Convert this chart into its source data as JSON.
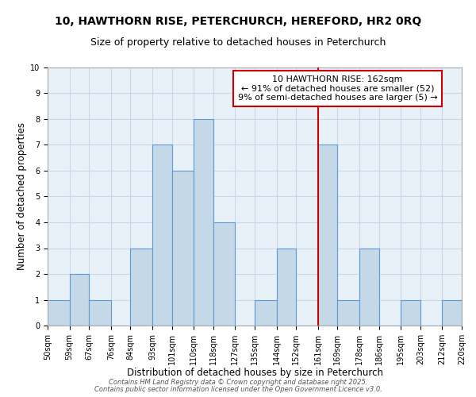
{
  "title": "10, HAWTHORN RISE, PETERCHURCH, HEREFORD, HR2 0RQ",
  "subtitle": "Size of property relative to detached houses in Peterchurch",
  "xlabel": "Distribution of detached houses by size in Peterchurch",
  "ylabel": "Number of detached properties",
  "bin_edges": [
    50,
    59,
    67,
    76,
    84,
    93,
    101,
    110,
    118,
    127,
    135,
    144,
    152,
    161,
    169,
    178,
    186,
    195,
    203,
    212,
    220
  ],
  "bin_labels": [
    "50sqm",
    "59sqm",
    "67sqm",
    "76sqm",
    "84sqm",
    "93sqm",
    "101sqm",
    "110sqm",
    "118sqm",
    "127sqm",
    "135sqm",
    "144sqm",
    "152sqm",
    "161sqm",
    "169sqm",
    "178sqm",
    "186sqm",
    "195sqm",
    "203sqm",
    "212sqm",
    "220sqm"
  ],
  "counts": [
    1,
    2,
    1,
    0,
    3,
    7,
    6,
    8,
    4,
    0,
    1,
    3,
    0,
    7,
    1,
    3,
    0,
    1,
    0,
    1
  ],
  "bar_color": "#c5d8e8",
  "bar_edge_color": "#5b9bd5",
  "vline_x": 161,
  "vline_color": "#cc0000",
  "annotation_line1": "10 HAWTHORN RISE: 162sqm",
  "annotation_line2": "← 91% of detached houses are smaller (52)",
  "annotation_line3": "9% of semi-detached houses are larger (5) →",
  "annotation_box_color": "#cc0000",
  "annotation_text_color": "#000000",
  "ylim": [
    0,
    10
  ],
  "yticks": [
    0,
    1,
    2,
    3,
    4,
    5,
    6,
    7,
    8,
    9,
    10
  ],
  "grid_color": "#c8d8e8",
  "bg_color": "#e8f0f8",
  "footer_line1": "Contains HM Land Registry data © Crown copyright and database right 2025.",
  "footer_line2": "Contains public sector information licensed under the Open Government Licence v3.0.",
  "title_fontsize": 10,
  "subtitle_fontsize": 9,
  "label_fontsize": 8.5,
  "tick_fontsize": 7,
  "annotation_fontsize": 8,
  "footer_fontsize": 6
}
